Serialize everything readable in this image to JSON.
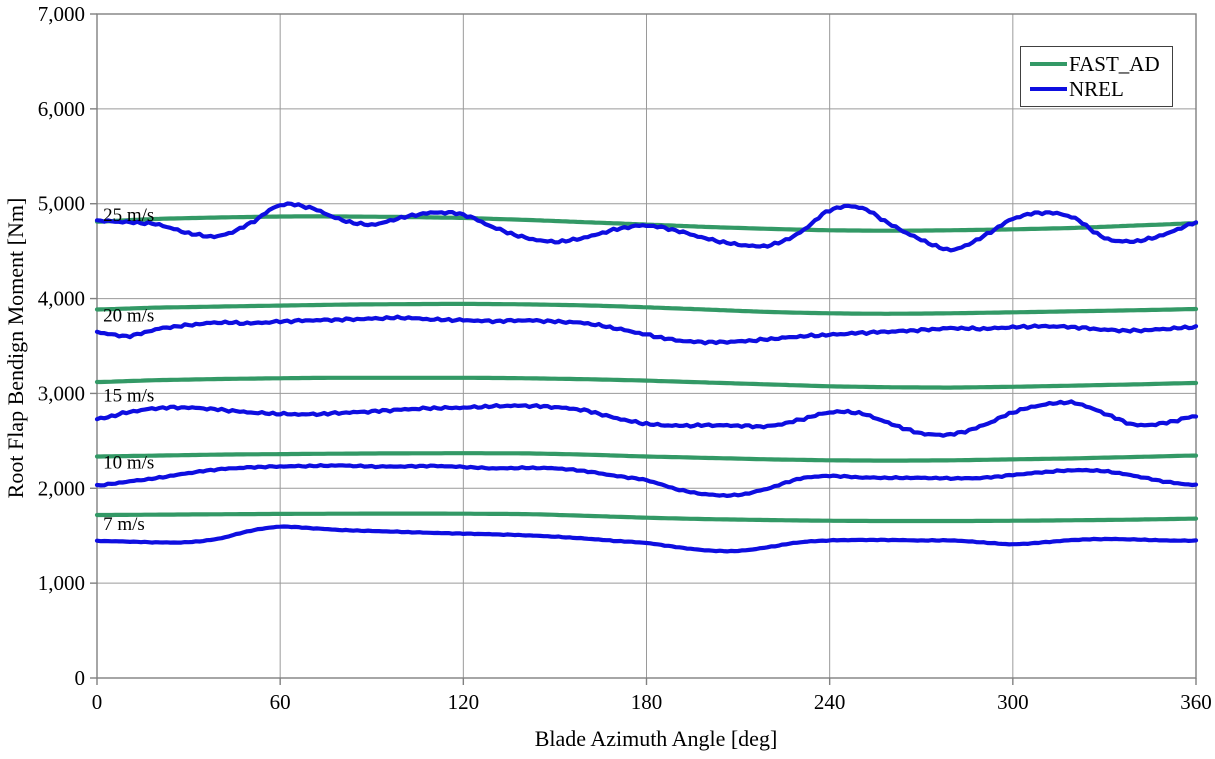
{
  "chart_data": {
    "type": "line",
    "title": "",
    "xlabel": "Blade Azimuth Angle [deg]",
    "ylabel": "Root Flap Bendign Moment [Nm]",
    "xlim": [
      0,
      360
    ],
    "ylim": [
      0,
      7000
    ],
    "xticks": [
      0,
      60,
      120,
      180,
      240,
      300,
      360
    ],
    "yticks": [
      0,
      1000,
      2000,
      3000,
      4000,
      5000,
      6000,
      7000
    ],
    "ytick_labels": [
      "0",
      "1,000",
      "2,000",
      "3,000",
      "4,000",
      "5,000",
      "6,000",
      "7,000"
    ],
    "grid": true,
    "grid_color": "#9a9a9a",
    "axis_color": "#808080",
    "legend": {
      "position": "top-right",
      "entries": [
        {
          "label": "FAST_AD",
          "color": "#339966"
        },
        {
          "label": "NREL",
          "color": "#0e0ee0"
        }
      ]
    },
    "x_step": 10,
    "x": [
      0,
      10,
      20,
      30,
      40,
      50,
      60,
      70,
      80,
      90,
      100,
      110,
      120,
      130,
      140,
      150,
      160,
      170,
      180,
      190,
      200,
      210,
      220,
      230,
      240,
      250,
      260,
      270,
      280,
      290,
      300,
      310,
      320,
      330,
      340,
      350,
      360
    ],
    "annotations": [
      {
        "text": "25 m/s",
        "x": 2,
        "y": 4890
      },
      {
        "text": "20 m/s",
        "x": 2,
        "y": 3830
      },
      {
        "text": "15 m/s",
        "x": 2,
        "y": 2990
      },
      {
        "text": "10 m/s",
        "x": 2,
        "y": 2280
      },
      {
        "text": "7 m/s",
        "x": 2,
        "y": 1635
      }
    ],
    "series": [
      {
        "name": "FAST_AD 25 m/s",
        "legend": "FAST_AD",
        "wind_speed": "25 m/s",
        "color": "#339966",
        "noise": 0,
        "values": [
          4810,
          4826,
          4840,
          4848,
          4855,
          4860,
          4865,
          4866,
          4865,
          4863,
          4860,
          4855,
          4850,
          4840,
          4830,
          4818,
          4805,
          4793,
          4780,
          4768,
          4755,
          4745,
          4735,
          4727,
          4720,
          4717,
          4715,
          4717,
          4720,
          4725,
          4730,
          4737,
          4745,
          4757,
          4770,
          4782,
          4795
        ]
      },
      {
        "name": "NREL 25 m/s",
        "legend": "NREL",
        "wind_speed": "25 m/s",
        "color": "#0e0ee0",
        "noise": 15,
        "values": [
          4820,
          4805,
          4780,
          4690,
          4660,
          4790,
          4985,
          4955,
          4830,
          4780,
          4855,
          4905,
          4885,
          4750,
          4645,
          4600,
          4645,
          4730,
          4770,
          4715,
          4630,
          4570,
          4560,
          4690,
          4930,
          4960,
          4780,
          4620,
          4515,
          4650,
          4840,
          4905,
          4850,
          4640,
          4605,
          4680,
          4800
        ]
      },
      {
        "name": "FAST_AD 20 m/s",
        "legend": "FAST_AD",
        "wind_speed": "20 m/s",
        "color": "#339966",
        "noise": 0,
        "values": [
          3885,
          3895,
          3905,
          3910,
          3916,
          3921,
          3926,
          3931,
          3936,
          3939,
          3941,
          3943,
          3944,
          3942,
          3939,
          3934,
          3928,
          3919,
          3908,
          3896,
          3884,
          3871,
          3859,
          3851,
          3845,
          3841,
          3840,
          3842,
          3845,
          3850,
          3855,
          3860,
          3866,
          3871,
          3877,
          3883,
          3890
        ]
      },
      {
        "name": "NREL 20 m/s",
        "legend": "NREL",
        "wind_speed": "20 m/s",
        "color": "#0e0ee0",
        "noise": 14,
        "values": [
          3645,
          3605,
          3680,
          3720,
          3748,
          3740,
          3758,
          3770,
          3778,
          3788,
          3798,
          3780,
          3772,
          3762,
          3770,
          3758,
          3740,
          3685,
          3620,
          3560,
          3540,
          3548,
          3572,
          3600,
          3618,
          3638,
          3652,
          3668,
          3688,
          3682,
          3698,
          3708,
          3698,
          3672,
          3662,
          3680,
          3700
        ]
      },
      {
        "name": "FAST_AD 15 m/s",
        "legend": "FAST_AD",
        "wind_speed": "15 m/s",
        "color": "#339966",
        "noise": 0,
        "values": [
          3120,
          3130,
          3140,
          3146,
          3152,
          3156,
          3160,
          3163,
          3165,
          3165,
          3165,
          3165,
          3165,
          3163,
          3160,
          3155,
          3150,
          3143,
          3135,
          3125,
          3115,
          3105,
          3095,
          3085,
          3075,
          3070,
          3065,
          3063,
          3062,
          3066,
          3070,
          3076,
          3082,
          3089,
          3095,
          3103,
          3110
        ]
      },
      {
        "name": "NREL 15 m/s",
        "legend": "NREL",
        "wind_speed": "15 m/s",
        "color": "#0e0ee0",
        "noise": 14,
        "values": [
          2730,
          2800,
          2845,
          2850,
          2830,
          2800,
          2785,
          2780,
          2795,
          2810,
          2830,
          2845,
          2850,
          2865,
          2870,
          2855,
          2820,
          2740,
          2680,
          2660,
          2665,
          2660,
          2655,
          2720,
          2800,
          2790,
          2680,
          2580,
          2570,
          2660,
          2800,
          2880,
          2900,
          2790,
          2670,
          2690,
          2760
        ]
      },
      {
        "name": "FAST_AD 10 m/s",
        "legend": "FAST_AD",
        "wind_speed": "10 m/s",
        "color": "#339966",
        "noise": 0,
        "values": [
          2335,
          2340,
          2345,
          2350,
          2355,
          2358,
          2360,
          2363,
          2365,
          2367,
          2368,
          2369,
          2370,
          2369,
          2368,
          2362,
          2355,
          2345,
          2335,
          2328,
          2320,
          2313,
          2305,
          2300,
          2295,
          2293,
          2292,
          2293,
          2295,
          2300,
          2305,
          2310,
          2315,
          2323,
          2330,
          2338,
          2345
        ]
      },
      {
        "name": "NREL 10 m/s",
        "legend": "NREL",
        "wind_speed": "10 m/s",
        "color": "#0e0ee0",
        "noise": 8,
        "values": [
          2030,
          2070,
          2110,
          2160,
          2200,
          2220,
          2230,
          2235,
          2240,
          2230,
          2230,
          2235,
          2225,
          2210,
          2215,
          2210,
          2180,
          2130,
          2085,
          1990,
          1935,
          1930,
          2000,
          2100,
          2130,
          2115,
          2110,
          2110,
          2105,
          2110,
          2140,
          2170,
          2190,
          2180,
          2130,
          2070,
          2035
        ]
      },
      {
        "name": "FAST_AD 7 m/s",
        "legend": "FAST_AD",
        "wind_speed": "7 m/s",
        "color": "#339966",
        "noise": 0,
        "values": [
          1718,
          1720,
          1722,
          1724,
          1726,
          1728,
          1730,
          1731,
          1732,
          1733,
          1733,
          1733,
          1732,
          1730,
          1728,
          1720,
          1710,
          1700,
          1690,
          1682,
          1675,
          1670,
          1665,
          1661,
          1658,
          1656,
          1655,
          1655,
          1655,
          1656,
          1658,
          1660,
          1663,
          1666,
          1670,
          1675,
          1680
        ]
      },
      {
        "name": "NREL 7 m/s",
        "legend": "NREL",
        "wind_speed": "7 m/s",
        "color": "#0e0ee0",
        "noise": 4,
        "values": [
          1445,
          1438,
          1430,
          1432,
          1470,
          1550,
          1595,
          1580,
          1560,
          1550,
          1540,
          1530,
          1522,
          1515,
          1505,
          1490,
          1470,
          1445,
          1423,
          1380,
          1345,
          1340,
          1380,
          1430,
          1450,
          1455,
          1455,
          1450,
          1450,
          1430,
          1410,
          1430,
          1455,
          1465,
          1460,
          1450,
          1448
        ]
      }
    ]
  }
}
